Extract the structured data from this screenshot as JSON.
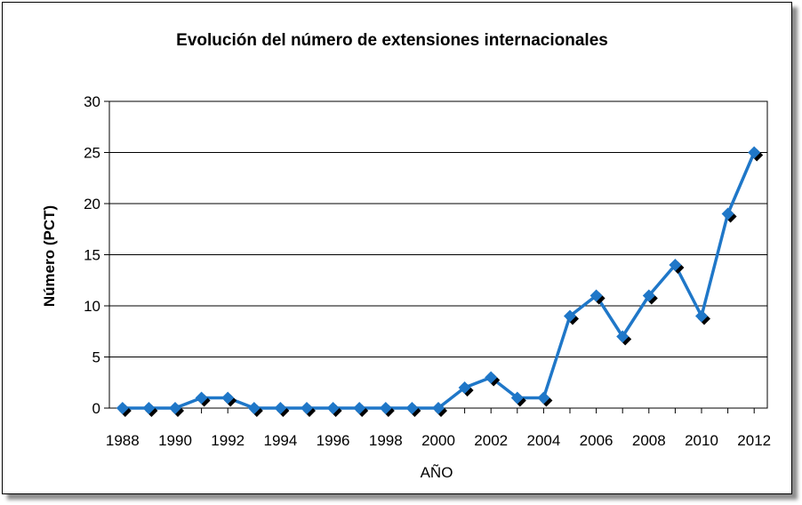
{
  "chart_data": {
    "type": "line",
    "title": "Evolución del número de extensiones internacionales",
    "xlabel": "AÑO",
    "ylabel": "Número (PCT)",
    "ylim": [
      0,
      30
    ],
    "yticks": [
      0,
      5,
      10,
      15,
      20,
      25,
      30
    ],
    "xlim": [
      1988,
      2012
    ],
    "xticks": [
      1988,
      1990,
      1992,
      1994,
      1996,
      1998,
      2000,
      2002,
      2004,
      2006,
      2008,
      2010,
      2012
    ],
    "grid": true,
    "legend": "none",
    "series": [
      {
        "color": "#1f77c8",
        "x": [
          1988,
          1989,
          1990,
          1991,
          1992,
          1993,
          1994,
          1995,
          1996,
          1997,
          1998,
          1999,
          2000,
          2001,
          2002,
          2003,
          2004,
          2005,
          2006,
          2007,
          2008,
          2009,
          2010,
          2011,
          2012
        ],
        "y": [
          0,
          0,
          0,
          1,
          1,
          0,
          0,
          0,
          0,
          0,
          0,
          0,
          0,
          2,
          3,
          1,
          1,
          9,
          11,
          7,
          11,
          14,
          9,
          19,
          25
        ]
      }
    ]
  }
}
